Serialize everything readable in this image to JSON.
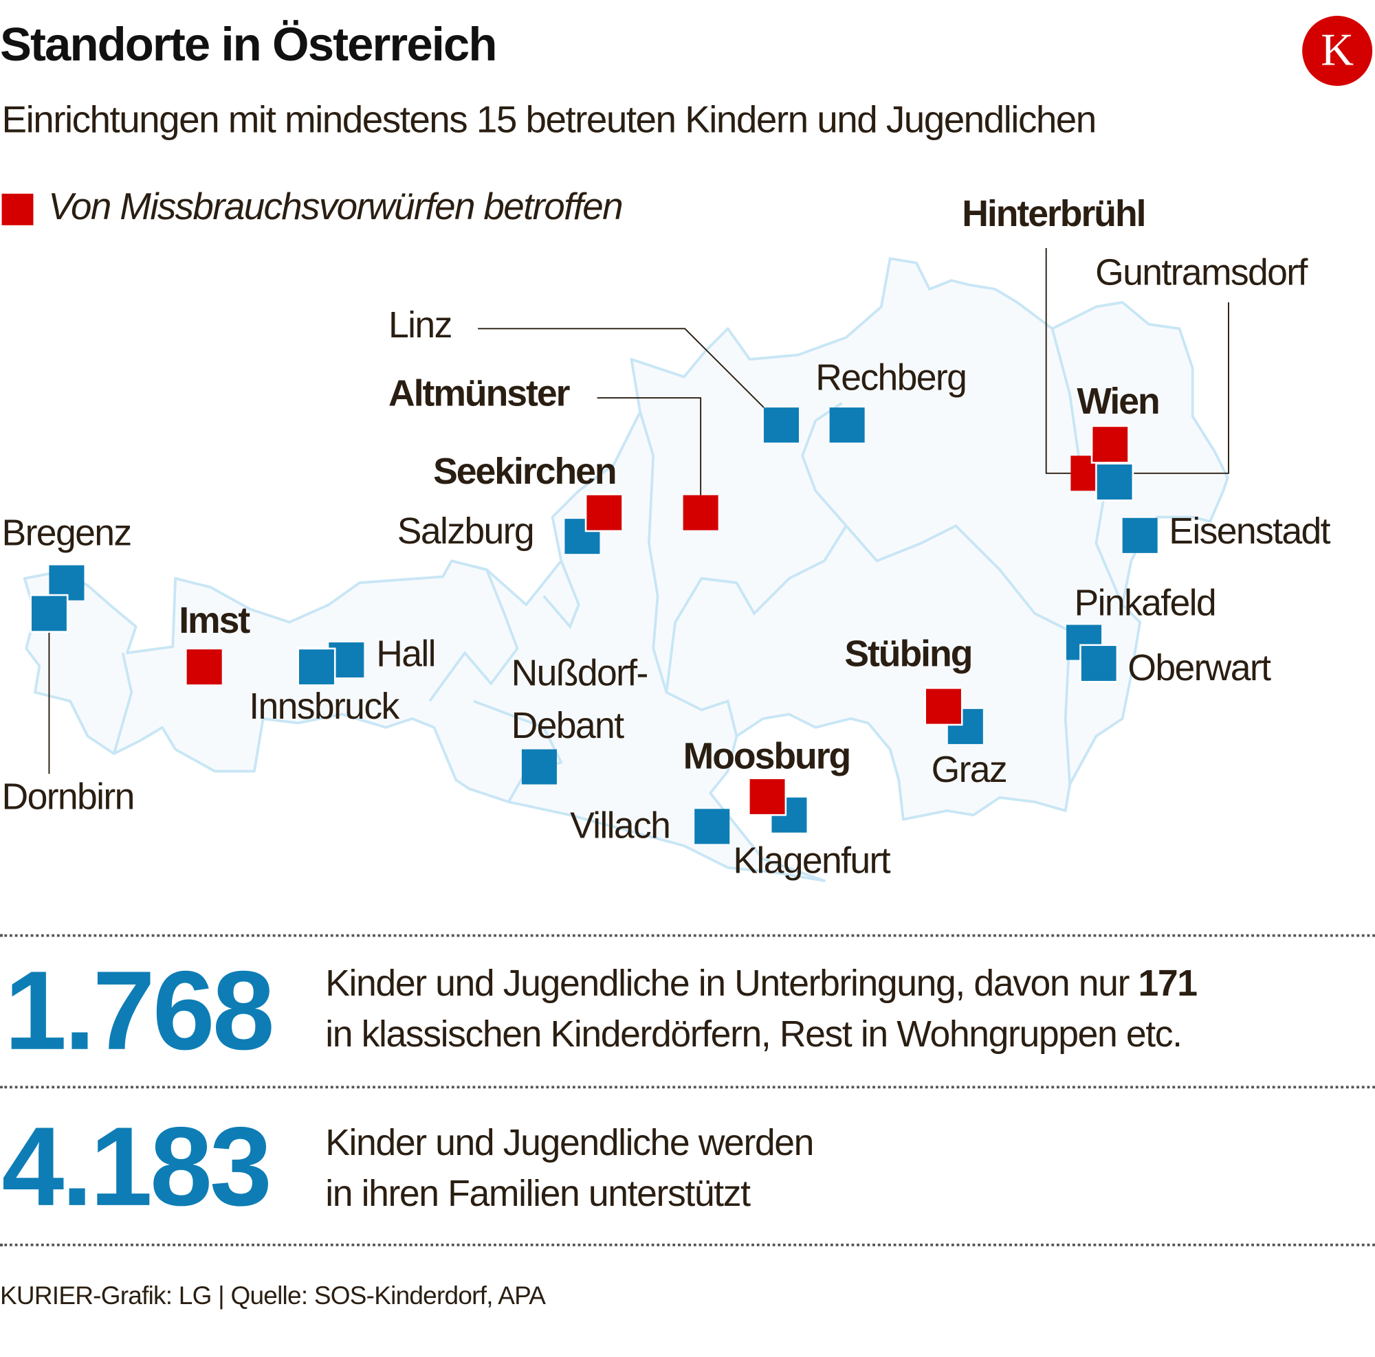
{
  "header": {
    "title": "Standorte in Österreich",
    "subtitle": "Einrichtungen mit mindestens 15 betreuten Kindern und Jugendlichen",
    "logo_letter": "K"
  },
  "legend": {
    "label": "Von Missbrauchsvorwürfen betroffen",
    "color_affected": "#d40000",
    "color_other": "#0e7db5"
  },
  "map": {
    "places": [
      {
        "name": "Linz",
        "affected": false
      },
      {
        "name": "Rechberg",
        "affected": false
      },
      {
        "name": "Altmünster",
        "affected": true
      },
      {
        "name": "Wien",
        "affected": true
      },
      {
        "name": "Hinterbrühl",
        "affected": true
      },
      {
        "name": "Guntramsdorf",
        "affected": false
      },
      {
        "name": "Seekirchen",
        "affected": true
      },
      {
        "name": "Salzburg",
        "affected": false
      },
      {
        "name": "Bregenz",
        "affected": false
      },
      {
        "name": "Eisenstadt",
        "affected": false
      },
      {
        "name": "Pinkafeld",
        "affected": false
      },
      {
        "name": "Imst",
        "affected": true
      },
      {
        "name": "Hall",
        "affected": false
      },
      {
        "name": "Stübing",
        "affected": true
      },
      {
        "name": "Oberwart",
        "affected": false
      },
      {
        "name": "Nußdorf-",
        "affected": false
      },
      {
        "name": "Debant",
        "affected": false
      },
      {
        "name": "Innsbruck",
        "affected": false
      },
      {
        "name": "Moosburg",
        "affected": true
      },
      {
        "name": "Graz",
        "affected": false
      },
      {
        "name": "Dornbirn",
        "affected": false
      },
      {
        "name": "Villach",
        "affected": false
      },
      {
        "name": "Klagenfurt",
        "affected": false
      }
    ]
  },
  "stats": [
    {
      "number": "1.768",
      "line1_pre": "Kinder und Jugendliche in Unterbringung, davon nur ",
      "line1_bold": "171",
      "line2": "in klassischen Kinderdörfern, Rest in Wohngruppen etc."
    },
    {
      "number": "4.183",
      "line1_pre": "Kinder und Jugendliche werden",
      "line1_bold": "",
      "line2": "in ihren Familien unterstützt"
    }
  ],
  "footer": {
    "source": "KURIER-Grafik: LG | Quelle: SOS-Kinderdorf, APA"
  }
}
